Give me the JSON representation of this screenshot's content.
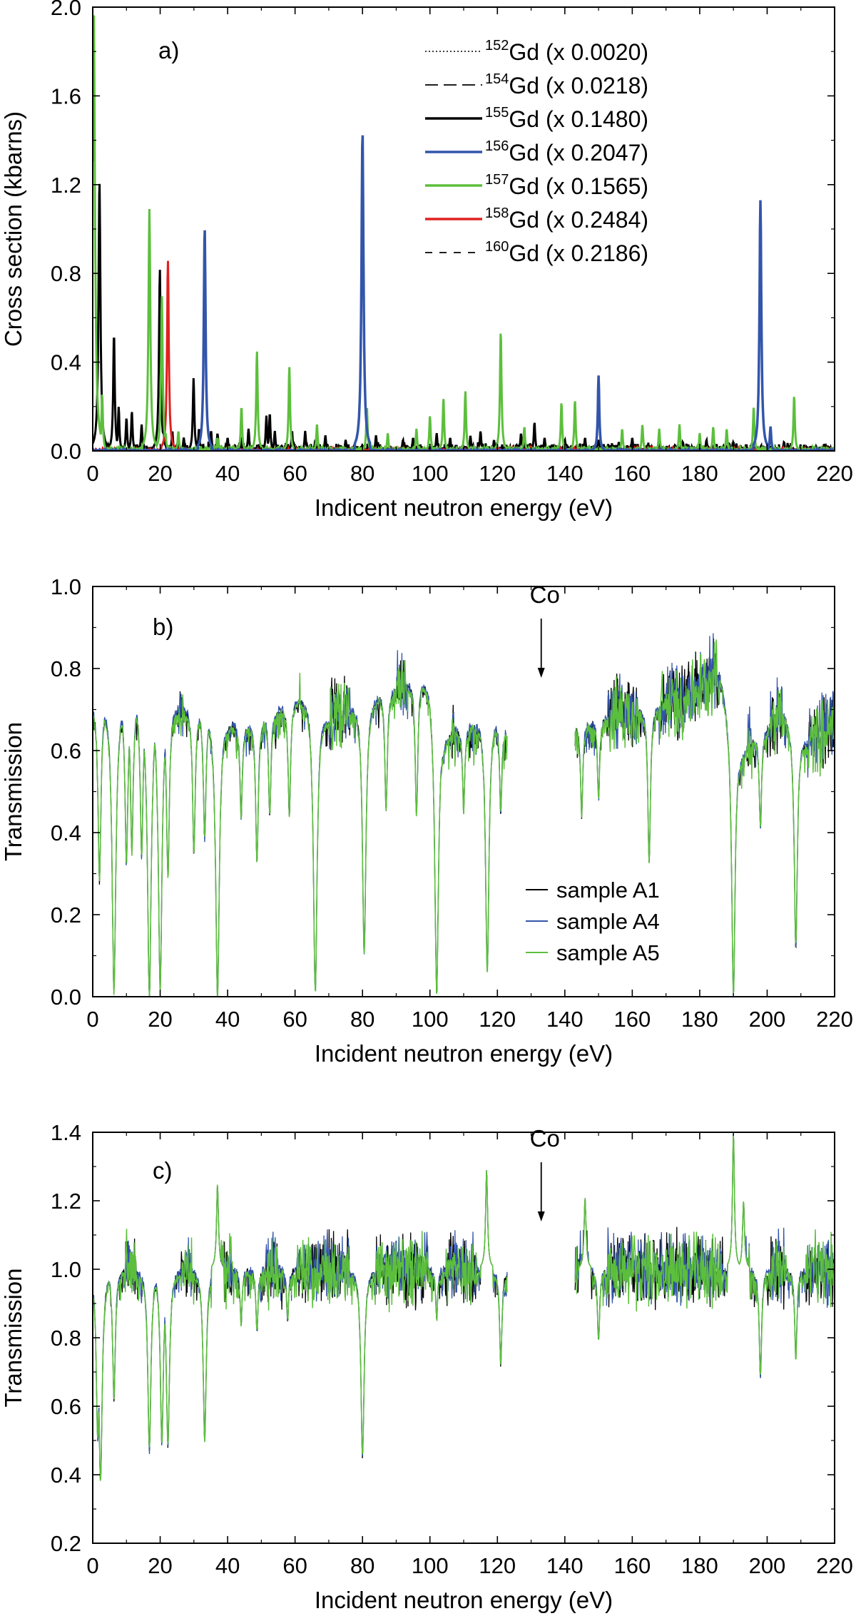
{
  "colors": {
    "black": "#000000",
    "blue": "#3355aa",
    "green": "#5cbf3c",
    "red": "#e02020"
  },
  "chart_data": [
    {
      "panel": "a)",
      "type": "line",
      "xlabel": "Indicent neutron energy (eV)",
      "ylabel": "Cross section (kbarns)",
      "xlim": [
        0,
        220
      ],
      "ylim": [
        0,
        2.0
      ],
      "xticks": [
        0,
        20,
        40,
        60,
        80,
        100,
        120,
        140,
        160,
        180,
        200,
        220
      ],
      "yticks": [
        0.0,
        0.4,
        0.8,
        1.2,
        1.6,
        2.0
      ],
      "legend_position": "top-right",
      "series": [
        {
          "name": "152Gd (x 0.0020)",
          "isotope": "152",
          "factor": "(x 0.0020)",
          "color": "#000000",
          "style": "dotted",
          "peaks": [
            [
              3.3,
              0.02
            ]
          ]
        },
        {
          "name": "154Gd (x 0.0218)",
          "isotope": "154",
          "factor": "(x 0.0218)",
          "color": "#000000",
          "style": "dashed",
          "peaks": [
            [
              11.5,
              0.03
            ]
          ]
        },
        {
          "name": "155Gd (x 0.1480)",
          "isotope": "155",
          "factor": "(x 0.1480)",
          "color": "#000000",
          "style": "solid-thick",
          "peaks": [
            [
              2.0,
              1.22
            ],
            [
              6.3,
              0.53
            ],
            [
              7.7,
              0.2
            ],
            [
              10.0,
              0.15
            ],
            [
              11.6,
              0.18
            ],
            [
              14.5,
              0.12
            ],
            [
              19.9,
              0.82
            ],
            [
              21.0,
              0.1
            ],
            [
              23.6,
              0.09
            ],
            [
              27.0,
              0.06
            ],
            [
              29.9,
              0.33
            ],
            [
              31.5,
              0.1
            ],
            [
              35.1,
              0.09
            ],
            [
              37.0,
              0.08
            ],
            [
              40.0,
              0.06
            ],
            [
              44.0,
              0.05
            ],
            [
              46.2,
              0.1
            ],
            [
              51.5,
              0.16
            ],
            [
              52.5,
              0.17
            ],
            [
              54.0,
              0.09
            ],
            [
              59.1,
              0.09
            ],
            [
              63.0,
              0.09
            ],
            [
              66.0,
              0.05
            ],
            [
              69.0,
              0.07
            ],
            [
              75.0,
              0.05
            ],
            [
              84.0,
              0.07
            ],
            [
              92.0,
              0.05
            ],
            [
              95.0,
              0.06
            ],
            [
              102.0,
              0.08
            ],
            [
              106.0,
              0.06
            ],
            [
              112.0,
              0.07
            ],
            [
              115.0,
              0.09
            ],
            [
              119.0,
              0.05
            ],
            [
              127.0,
              0.08
            ],
            [
              131.0,
              0.13
            ],
            [
              134.0,
              0.06
            ],
            [
              140.0,
              0.05
            ],
            [
              146.0,
              0.06
            ],
            [
              150.0,
              0.05
            ],
            [
              156.0,
              0.04
            ],
            [
              160.0,
              0.06
            ],
            [
              168.0,
              0.05
            ],
            [
              175.0,
              0.04
            ],
            [
              182.0,
              0.05
            ],
            [
              190.0,
              0.04
            ],
            [
              205.0,
              0.04
            ]
          ]
        },
        {
          "name": "156Gd (x 0.2047)",
          "isotope": "156",
          "factor": "(x 0.2047)",
          "color": "#3355aa",
          "style": "solid-thick",
          "peaks": [
            [
              33.2,
              1.01
            ],
            [
              80.0,
              1.44
            ],
            [
              150.0,
              0.34
            ],
            [
              198.0,
              1.13
            ],
            [
              201.0,
              0.11
            ]
          ]
        },
        {
          "name": "157Gd (x 0.1565)",
          "isotope": "157",
          "factor": "(x 0.1565)",
          "color": "#5cbf3c",
          "style": "solid-thick",
          "peaks": [
            [
              0.3,
              2.0
            ],
            [
              2.8,
              0.26
            ],
            [
              16.8,
              1.09
            ],
            [
              20.5,
              0.7
            ],
            [
              21.6,
              0.08
            ],
            [
              25.4,
              0.09
            ],
            [
              37.0,
              0.06
            ],
            [
              44.1,
              0.2
            ],
            [
              48.7,
              0.45
            ],
            [
              58.3,
              0.38
            ],
            [
              66.5,
              0.12
            ],
            [
              81.3,
              0.2
            ],
            [
              87.5,
              0.08
            ],
            [
              96.0,
              0.1
            ],
            [
              100.0,
              0.16
            ],
            [
              104.0,
              0.24
            ],
            [
              110.5,
              0.27
            ],
            [
              121.0,
              0.54
            ],
            [
              128.0,
              0.11
            ],
            [
              139.0,
              0.22
            ],
            [
              143.0,
              0.23
            ],
            [
              157.0,
              0.1
            ],
            [
              163.0,
              0.12
            ],
            [
              168.0,
              0.1
            ],
            [
              174.0,
              0.12
            ],
            [
              180.0,
              0.08
            ],
            [
              184.0,
              0.11
            ],
            [
              188.0,
              0.1
            ],
            [
              196.0,
              0.2
            ],
            [
              208.0,
              0.25
            ]
          ]
        },
        {
          "name": "158Gd (x 0.2484)",
          "isotope": "158",
          "factor": "(x 0.2484)",
          "color": "#e02020",
          "style": "solid-thick",
          "peaks": [
            [
              22.3,
              0.86
            ],
            [
              103.0,
              0.02
            ],
            [
              130.0,
              0.02
            ]
          ]
        },
        {
          "name": "160Gd (x 0.2186)",
          "isotope": "160",
          "factor": "(x 0.2186)",
          "color": "#000000",
          "style": "long-dash",
          "peaks": [
            [
              221.0,
              0.01
            ]
          ]
        }
      ]
    },
    {
      "panel": "b)",
      "type": "line",
      "xlabel": "Incident neutron energy (eV)",
      "ylabel": "Transmission",
      "xlim": [
        0,
        220
      ],
      "ylim": [
        0.0,
        1.0
      ],
      "xticks": [
        0,
        20,
        40,
        60,
        80,
        100,
        120,
        140,
        160,
        180,
        200,
        220
      ],
      "yticks": [
        0.0,
        0.2,
        0.4,
        0.6,
        0.8,
        1.0
      ],
      "gap": [
        123,
        143
      ],
      "annotation": {
        "text": "Co",
        "x": 133
      },
      "legend_position": "bottom-center",
      "series": [
        {
          "name": "sample A1",
          "color": "#000000"
        },
        {
          "name": "sample A4",
          "color": "#3355aa"
        },
        {
          "name": "sample A5",
          "color": "#5cbf3c"
        }
      ],
      "baseline": [
        [
          0,
          0.72
        ],
        [
          18,
          0.72
        ],
        [
          30,
          0.7
        ],
        [
          45,
          0.66
        ],
        [
          60,
          0.72
        ],
        [
          64,
          0.74
        ],
        [
          70,
          0.68
        ],
        [
          80,
          0.72
        ],
        [
          92,
          0.76
        ],
        [
          100,
          0.78
        ],
        [
          104,
          0.64
        ],
        [
          112,
          0.66
        ],
        [
          118,
          0.7
        ],
        [
          122,
          0.65
        ],
        [
          143,
          0.66
        ],
        [
          160,
          0.7
        ],
        [
          175,
          0.72
        ],
        [
          186,
          0.8
        ],
        [
          192,
          0.6
        ],
        [
          198,
          0.64
        ],
        [
          205,
          0.7
        ],
        [
          212,
          0.62
        ],
        [
          220,
          0.66
        ]
      ],
      "dips": [
        [
          2.0,
          0.28
        ],
        [
          6.3,
          0.01
        ],
        [
          10.0,
          0.32
        ],
        [
          11.6,
          0.35
        ],
        [
          14.5,
          0.34
        ],
        [
          16.8,
          0.0
        ],
        [
          20.0,
          0.02
        ],
        [
          22.3,
          0.29
        ],
        [
          30.0,
          0.35
        ],
        [
          33.2,
          0.38
        ],
        [
          37.0,
          0.0
        ],
        [
          44.0,
          0.43
        ],
        [
          48.7,
          0.33
        ],
        [
          52.5,
          0.44
        ],
        [
          58.3,
          0.44
        ],
        [
          66.0,
          0.01
        ],
        [
          80.5,
          0.1
        ],
        [
          87.0,
          0.45
        ],
        [
          96.0,
          0.44
        ],
        [
          102.0,
          0.01
        ],
        [
          110.0,
          0.45
        ],
        [
          117.0,
          0.06
        ],
        [
          121.0,
          0.45
        ],
        [
          145.0,
          0.44
        ],
        [
          150.0,
          0.48
        ],
        [
          165.0,
          0.33
        ],
        [
          190.0,
          0.01
        ],
        [
          198.0,
          0.41
        ],
        [
          208.5,
          0.12
        ]
      ]
    },
    {
      "panel": "c)",
      "type": "line",
      "xlabel": "Incident neutron energy (eV)",
      "ylabel": "Transmission",
      "xlim": [
        0,
        220
      ],
      "ylim": [
        0.2,
        1.4
      ],
      "xticks": [
        0,
        20,
        40,
        60,
        80,
        100,
        120,
        140,
        160,
        180,
        200,
        220
      ],
      "yticks": [
        0.2,
        0.4,
        0.6,
        0.8,
        1.0,
        1.2,
        1.4
      ],
      "gap": [
        123,
        143
      ],
      "annotation": {
        "text": "Co",
        "x": 133
      },
      "series": [
        {
          "name": "sample A1",
          "color": "#000000"
        },
        {
          "name": "sample A4",
          "color": "#3355aa"
        },
        {
          "name": "sample A5",
          "color": "#5cbf3c"
        }
      ],
      "dips": [
        [
          1.5,
          0.5
        ],
        [
          2.3,
          0.38
        ],
        [
          6.3,
          0.62
        ],
        [
          16.8,
          0.47
        ],
        [
          20.5,
          0.49
        ],
        [
          22.3,
          0.48
        ],
        [
          33.2,
          0.5
        ],
        [
          44.0,
          0.84
        ],
        [
          48.7,
          0.82
        ],
        [
          57.8,
          0.85
        ],
        [
          80.0,
          0.45
        ],
        [
          102.0,
          0.85
        ],
        [
          117.0,
          0.7
        ],
        [
          121.0,
          0.72
        ],
        [
          150.0,
          0.79
        ],
        [
          190.0,
          0.68
        ],
        [
          198.0,
          0.69
        ],
        [
          208.5,
          0.74
        ]
      ],
      "spikes": [
        [
          37.0,
          1.25
        ],
        [
          116.8,
          1.29
        ],
        [
          146.0,
          1.21
        ],
        [
          190.0,
          1.4
        ],
        [
          193.0,
          1.2
        ]
      ]
    }
  ]
}
